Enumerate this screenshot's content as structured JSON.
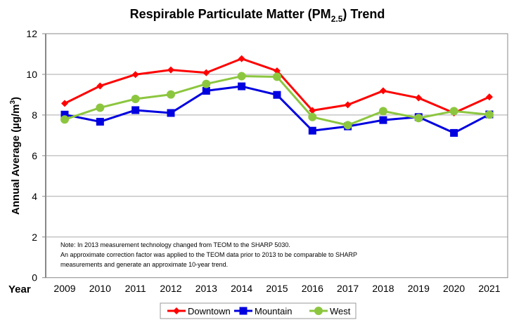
{
  "chart_data": {
    "type": "line",
    "title": "Respirable Particulate Matter (PM",
    "title_subscript": "2.5",
    "title_suffix": ") Trend",
    "xlabel": "Year",
    "ylabel": "Annual Average  (µg/m",
    "ylabel_superscript": "3",
    "ylabel_suffix": ")",
    "ylim": [
      0,
      12
    ],
    "yticks": [
      "0",
      "2",
      "4",
      "6",
      "8",
      "10",
      "12"
    ],
    "grid": true,
    "legend": "bottom",
    "categories": [
      "2009",
      "2010",
      "2011",
      "2012",
      "2013",
      "2014",
      "2015",
      "2016",
      "2017",
      "2018",
      "2019",
      "2020",
      "2021"
    ],
    "series": [
      {
        "name": "Downtown",
        "color": "#ff0000",
        "marker": "diamond",
        "values": [
          8.57,
          9.43,
          9.99,
          10.22,
          10.08,
          10.77,
          10.17,
          8.22,
          8.5,
          9.19,
          8.84,
          8.1,
          8.89
        ]
      },
      {
        "name": "Mountain",
        "color": "#0000e0",
        "marker": "square",
        "values": [
          8.02,
          7.67,
          8.24,
          8.1,
          9.19,
          9.41,
          8.99,
          7.23,
          7.44,
          7.75,
          7.9,
          7.12,
          8.03
        ]
      },
      {
        "name": "West",
        "color": "#8cc63f",
        "marker": "circle",
        "values": [
          7.78,
          8.36,
          8.79,
          9.01,
          9.53,
          9.91,
          9.88,
          7.9,
          7.5,
          8.19,
          7.85,
          8.19,
          8.02
        ]
      }
    ],
    "annotation": [
      "Note: In 2013 measurement technology changed from TEOM to the SHARP 5030.",
      "An approximate correction factor was applied to the TEOM data prior to 2013 to be comparable to SHARP",
      "measurements and generate an approximate 10-year trend."
    ]
  }
}
